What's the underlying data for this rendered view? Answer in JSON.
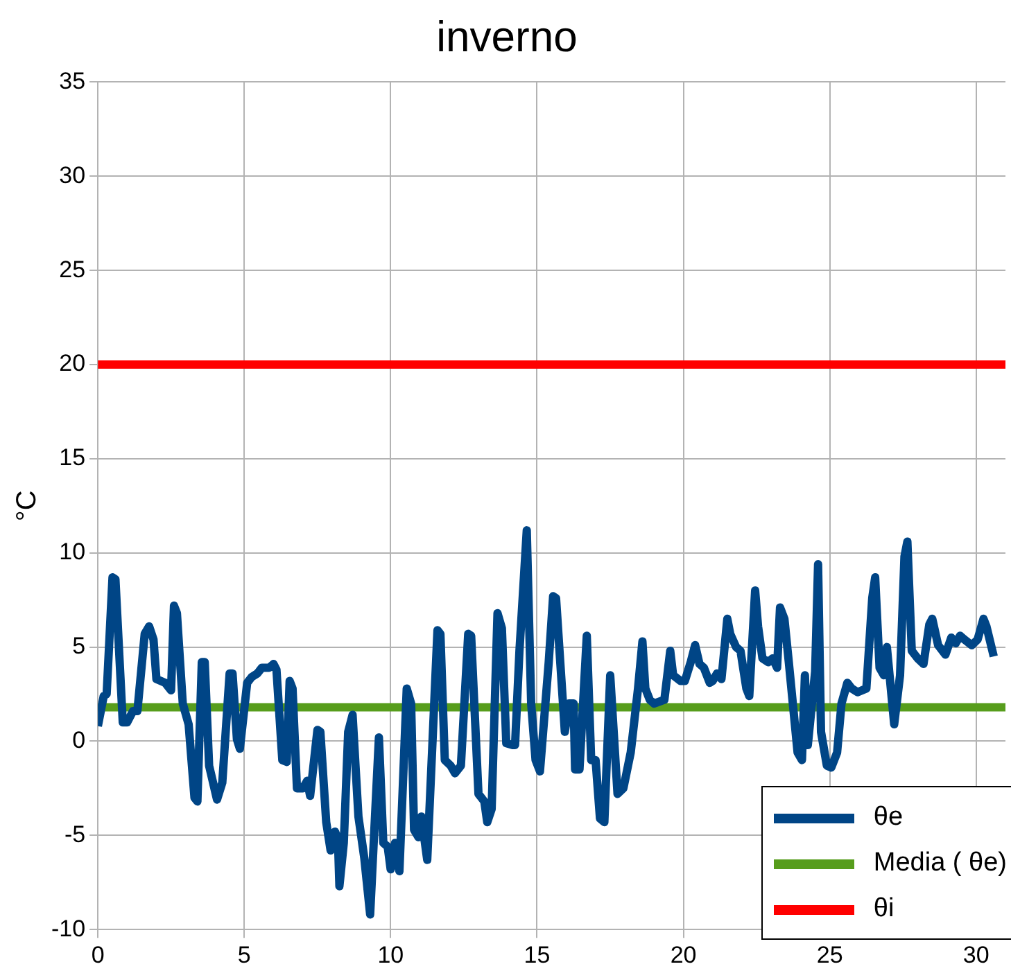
{
  "chart_data": {
    "type": "line",
    "title": "inverno",
    "ylabel": "°C",
    "xlim": [
      0,
      31
    ],
    "xticks": [
      0,
      5,
      10,
      15,
      20,
      25,
      30
    ],
    "ylim": [
      -10,
      35
    ],
    "yticks": [
      -10,
      -5,
      0,
      5,
      10,
      15,
      20,
      25,
      30,
      35
    ],
    "grid": true,
    "legend": "bottom right",
    "marker": "none",
    "line_style": "solid",
    "series": [
      {
        "name": "θe",
        "color": "#004586",
        "x": [
          0,
          0.2,
          0.3,
          0.5,
          0.6,
          0.85,
          1.0,
          1.2,
          1.35,
          1.6,
          1.75,
          1.9,
          2.0,
          2.3,
          2.5,
          2.6,
          2.7,
          2.9,
          3.1,
          3.3,
          3.4,
          3.55,
          3.65,
          3.8,
          4.07,
          4.25,
          4.5,
          4.6,
          4.75,
          4.85,
          5.1,
          5.25,
          5.45,
          5.6,
          5.85,
          6.0,
          6.1,
          6.3,
          6.45,
          6.55,
          6.65,
          6.8,
          7.0,
          7.15,
          7.25,
          7.5,
          7.6,
          7.8,
          7.95,
          8.1,
          8.2,
          8.25,
          8.4,
          8.55,
          8.7,
          8.9,
          9.1,
          9.3,
          9.6,
          9.75,
          9.9,
          10.0,
          10.15,
          10.3,
          10.55,
          10.7,
          10.8,
          10.95,
          11.05,
          11.25,
          11.6,
          11.7,
          11.85,
          12.05,
          12.2,
          12.4,
          12.65,
          12.75,
          13.0,
          13.2,
          13.3,
          13.45,
          13.65,
          13.8,
          13.95,
          14.15,
          14.25,
          14.4,
          14.65,
          14.8,
          14.95,
          15.1,
          15.4,
          15.55,
          15.65,
          15.95,
          16.1,
          16.25,
          16.3,
          16.45,
          16.7,
          16.85,
          17.0,
          17.15,
          17.3,
          17.5,
          17.75,
          17.95,
          18.2,
          18.45,
          18.6,
          18.7,
          18.85,
          19.0,
          19.35,
          19.55,
          19.65,
          19.9,
          20.05,
          20.25,
          20.4,
          20.55,
          20.7,
          20.9,
          21.0,
          21.15,
          21.3,
          21.5,
          21.6,
          21.8,
          21.95,
          22.15,
          22.25,
          22.45,
          22.55,
          22.7,
          22.9,
          23.05,
          23.2,
          23.3,
          23.45,
          23.6,
          23.9,
          24.05,
          24.15,
          24.25,
          24.5,
          24.6,
          24.7,
          24.9,
          25.05,
          25.25,
          25.4,
          25.6,
          25.75,
          25.95,
          26.25,
          26.45,
          26.55,
          26.7,
          26.85,
          26.95,
          27.2,
          27.4,
          27.55,
          27.65,
          27.8,
          28.0,
          28.2,
          28.4,
          28.5,
          28.7,
          28.95,
          29.15,
          29.3,
          29.45,
          29.6,
          29.85,
          30.05,
          30.25,
          30.35,
          30.6
        ],
        "values": [
          0.8,
          2.4,
          2.5,
          8.7,
          8.6,
          1.0,
          1.0,
          1.6,
          1.6,
          5.7,
          6.1,
          5.4,
          3.3,
          3.1,
          2.7,
          7.2,
          6.8,
          2.0,
          0.9,
          -3.0,
          -3.2,
          4.2,
          4.2,
          -1.3,
          -3.1,
          -2.2,
          3.6,
          3.6,
          0.1,
          -0.4,
          3.1,
          3.4,
          3.6,
          3.9,
          3.9,
          4.1,
          3.8,
          -1.0,
          -1.1,
          3.2,
          2.8,
          -2.5,
          -2.5,
          -2.1,
          -2.9,
          0.6,
          0.5,
          -4.3,
          -5.8,
          -4.8,
          -5.2,
          -7.7,
          -5.4,
          0.5,
          1.4,
          -4.0,
          -6.2,
          -9.2,
          0.2,
          -5.4,
          -5.6,
          -6.8,
          -5.4,
          -6.9,
          2.8,
          2.0,
          -4.7,
          -5.1,
          -4.0,
          -6.3,
          5.9,
          5.7,
          -1.0,
          -1.3,
          -1.7,
          -1.3,
          5.7,
          5.6,
          -2.8,
          -3.2,
          -4.3,
          -3.6,
          6.8,
          6.0,
          -0.1,
          -0.2,
          -0.2,
          4.8,
          11.2,
          2.0,
          -1.0,
          -1.6,
          4.2,
          7.7,
          7.6,
          0.5,
          2.0,
          2.0,
          -1.5,
          -1.5,
          5.6,
          -1.0,
          -1.0,
          -4.1,
          -4.3,
          3.5,
          -2.8,
          -2.5,
          -0.6,
          2.8,
          5.3,
          2.8,
          2.2,
          2.0,
          2.2,
          4.8,
          3.5,
          3.2,
          3.2,
          4.2,
          5.1,
          4.1,
          3.9,
          3.1,
          3.2,
          3.6,
          3.3,
          6.5,
          5.7,
          5.0,
          4.8,
          2.8,
          2.4,
          8.0,
          6.1,
          4.4,
          4.2,
          4.4,
          3.9,
          7.1,
          6.5,
          4.2,
          -0.6,
          -1.0,
          3.5,
          -0.2,
          3.7,
          9.4,
          0.5,
          -1.3,
          -1.4,
          -0.6,
          2.0,
          3.1,
          2.8,
          2.6,
          2.8,
          7.6,
          8.7,
          3.9,
          3.5,
          5.0,
          0.9,
          3.5,
          9.8,
          10.6,
          4.8,
          4.4,
          4.1,
          6.2,
          6.5,
          5.1,
          4.6,
          5.5,
          5.2,
          5.6,
          5.4,
          5.1,
          5.4,
          6.5,
          6.1,
          4.5
        ]
      },
      {
        "name": "Media ( θe)",
        "color": "#579d1c",
        "x": [
          0,
          31
        ],
        "values": [
          1.8,
          1.8
        ]
      },
      {
        "name": "θi",
        "color": "#ff0000",
        "x": [
          0,
          31
        ],
        "values": [
          20,
          20
        ]
      }
    ]
  }
}
